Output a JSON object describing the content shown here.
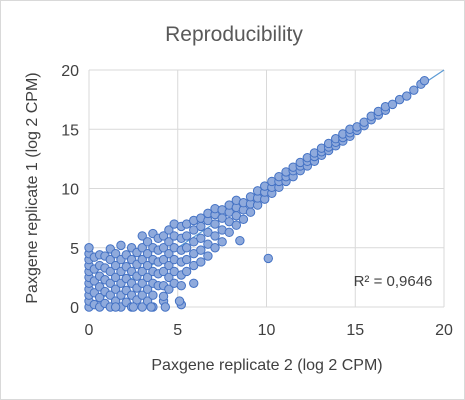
{
  "chart_data": {
    "type": "scatter",
    "title": "Reproducibility",
    "xlabel": "Paxgene replicate 2 (log 2 CPM)",
    "ylabel": "Paxgene replicate 1 (log 2 CPM)",
    "xlim": [
      0,
      20
    ],
    "ylim": [
      0,
      20
    ],
    "xticks": [
      "0",
      "5",
      "10",
      "15",
      "20"
    ],
    "yticks": [
      "0",
      "5",
      "10",
      "15",
      "20"
    ],
    "grid": true,
    "trendline": {
      "type": "linear",
      "slope": 1,
      "intercept": 0
    },
    "annotation": "R² = 0,9646",
    "marker_color": "#8faadc",
    "marker_edge_color": "#4472c4",
    "trendline_color": "#5b9bd5",
    "series": [
      {
        "points": [
          [
            0,
            0
          ],
          [
            0,
            0.5
          ],
          [
            0,
            1
          ],
          [
            0,
            1.5
          ],
          [
            0,
            2
          ],
          [
            0,
            2.5
          ],
          [
            0,
            3
          ],
          [
            0,
            3.5
          ],
          [
            0,
            4
          ],
          [
            0,
            4.5
          ],
          [
            0,
            5
          ],
          [
            0.3,
            0.2
          ],
          [
            0.3,
            1.2
          ],
          [
            0.3,
            2.2
          ],
          [
            0.3,
            3.2
          ],
          [
            0.3,
            4.2
          ],
          [
            0.6,
            0
          ],
          [
            0.6,
            0.8
          ],
          [
            0.6,
            1.7
          ],
          [
            0.6,
            2.6
          ],
          [
            0.6,
            3.5
          ],
          [
            0.6,
            4.4
          ],
          [
            0.9,
            0.3
          ],
          [
            0.9,
            1.3
          ],
          [
            0.9,
            2.3
          ],
          [
            0.9,
            3.3
          ],
          [
            0.9,
            4.3
          ],
          [
            1.2,
            0
          ],
          [
            1.2,
            1
          ],
          [
            1.2,
            2
          ],
          [
            1.2,
            3
          ],
          [
            1.2,
            4
          ],
          [
            1.2,
            4.9
          ],
          [
            1.5,
            0.5
          ],
          [
            1.5,
            1.5
          ],
          [
            1.5,
            2.5
          ],
          [
            1.5,
            3.5
          ],
          [
            1.5,
            4.5
          ],
          [
            1.8,
            0
          ],
          [
            1.8,
            1
          ],
          [
            1.8,
            2
          ],
          [
            1.8,
            3
          ],
          [
            1.8,
            4
          ],
          [
            1.8,
            5.2
          ],
          [
            2.1,
            0.4
          ],
          [
            2.1,
            1.4
          ],
          [
            2.1,
            2.4
          ],
          [
            2.1,
            3.4
          ],
          [
            2.1,
            4.4
          ],
          [
            2.4,
            0
          ],
          [
            2.4,
            1
          ],
          [
            2.4,
            2
          ],
          [
            2.4,
            3
          ],
          [
            2.4,
            4
          ],
          [
            2.4,
            5
          ],
          [
            2.7,
            0.6
          ],
          [
            2.7,
            1.6
          ],
          [
            2.7,
            2.6
          ],
          [
            2.7,
            3.6
          ],
          [
            2.7,
            4.6
          ],
          [
            3,
            0
          ],
          [
            3,
            1
          ],
          [
            3,
            2
          ],
          [
            3,
            3
          ],
          [
            3,
            4
          ],
          [
            3,
            5
          ],
          [
            3,
            6
          ],
          [
            3.3,
            0.5
          ],
          [
            3.3,
            1.5
          ],
          [
            3.3,
            2.5
          ],
          [
            3.3,
            3.5
          ],
          [
            3.3,
            4.5
          ],
          [
            3.3,
            5.5
          ],
          [
            3.6,
            0
          ],
          [
            3.6,
            1
          ],
          [
            3.6,
            2
          ],
          [
            3.6,
            3
          ],
          [
            3.6,
            4
          ],
          [
            3.6,
            5
          ],
          [
            3.6,
            6.2
          ],
          [
            3.9,
            1.8
          ],
          [
            3.9,
            2.8
          ],
          [
            3.9,
            3.8
          ],
          [
            3.9,
            4.8
          ],
          [
            3.9,
            5.8
          ],
          [
            4.2,
            0.5
          ],
          [
            4.2,
            1.8
          ],
          [
            4.2,
            3
          ],
          [
            4.2,
            4
          ],
          [
            4.2,
            5
          ],
          [
            4.2,
            6
          ],
          [
            4.5,
            1.5
          ],
          [
            4.5,
            2.5
          ],
          [
            4.5,
            3.5
          ],
          [
            4.5,
            4.5
          ],
          [
            4.5,
            5.5
          ],
          [
            4.5,
            6.5
          ],
          [
            4.8,
            2
          ],
          [
            4.8,
            3
          ],
          [
            4.8,
            4
          ],
          [
            4.8,
            5
          ],
          [
            4.8,
            6
          ],
          [
            4.8,
            7
          ],
          [
            5.2,
            0.2
          ],
          [
            5.2,
            1.8
          ],
          [
            5.2,
            2.7
          ],
          [
            5.2,
            3.8
          ],
          [
            5.2,
            4.8
          ],
          [
            5.2,
            5.8
          ],
          [
            5.2,
            6.8
          ],
          [
            5.5,
            3
          ],
          [
            5.5,
            4
          ],
          [
            5.5,
            5
          ],
          [
            5.5,
            6
          ],
          [
            5.5,
            7
          ],
          [
            5.9,
            2
          ],
          [
            5.9,
            3.5
          ],
          [
            5.9,
            4.5
          ],
          [
            5.9,
            5.5
          ],
          [
            5.9,
            6.5
          ],
          [
            5.9,
            7.3
          ],
          [
            6.3,
            3.8
          ],
          [
            6.3,
            4.8
          ],
          [
            6.3,
            5.8
          ],
          [
            6.3,
            6.8
          ],
          [
            6.3,
            7.5
          ],
          [
            6.7,
            4.3
          ],
          [
            6.7,
            5.3
          ],
          [
            6.7,
            6.3
          ],
          [
            6.7,
            7.3
          ],
          [
            6.7,
            7.9
          ],
          [
            7.1,
            5
          ],
          [
            7.1,
            6
          ],
          [
            7.1,
            7
          ],
          [
            7.1,
            7.8
          ],
          [
            7.1,
            8.3
          ],
          [
            7.5,
            5.5
          ],
          [
            7.5,
            6.5
          ],
          [
            7.5,
            7.5
          ],
          [
            7.5,
            8.2
          ],
          [
            7.9,
            6.3
          ],
          [
            7.9,
            7.2
          ],
          [
            7.9,
            8
          ],
          [
            7.9,
            8.6
          ],
          [
            8.3,
            6.9
          ],
          [
            8.3,
            7.7
          ],
          [
            8.3,
            8.4
          ],
          [
            8.3,
            9
          ],
          [
            8.7,
            7.4
          ],
          [
            8.7,
            8.2
          ],
          [
            8.7,
            8.8
          ],
          [
            8.5,
            5.6
          ],
          [
            10.1,
            4.1
          ],
          [
            9.1,
            8
          ],
          [
            9.1,
            8.7
          ],
          [
            9.1,
            9.3
          ],
          [
            9.5,
            8.6
          ],
          [
            9.5,
            9.2
          ],
          [
            9.5,
            9.8
          ],
          [
            9.9,
            9.1
          ],
          [
            9.9,
            9.7
          ],
          [
            9.9,
            10.2
          ],
          [
            10.3,
            9.6
          ],
          [
            10.3,
            10.1
          ],
          [
            10.3,
            10.6
          ],
          [
            10.7,
            10.1
          ],
          [
            10.7,
            10.6
          ],
          [
            10.7,
            11
          ],
          [
            11.1,
            10.6
          ],
          [
            11.1,
            11
          ],
          [
            11.1,
            11.4
          ],
          [
            11.5,
            11
          ],
          [
            11.5,
            11.5
          ],
          [
            11.5,
            11.8
          ],
          [
            11.9,
            11.5
          ],
          [
            11.9,
            11.9
          ],
          [
            11.9,
            12.2
          ],
          [
            12.3,
            11.9
          ],
          [
            12.3,
            12.3
          ],
          [
            12.3,
            12.6
          ],
          [
            12.7,
            12.3
          ],
          [
            12.7,
            12.7
          ],
          [
            12.7,
            13
          ],
          [
            13.1,
            12.8
          ],
          [
            13.1,
            13.1
          ],
          [
            13.1,
            13.4
          ],
          [
            13.5,
            13.2
          ],
          [
            13.5,
            13.5
          ],
          [
            13.5,
            13.8
          ],
          [
            13.9,
            13.6
          ],
          [
            13.9,
            13.9
          ],
          [
            13.9,
            14.2
          ],
          [
            14.3,
            14
          ],
          [
            14.3,
            14.3
          ],
          [
            14.3,
            14.6
          ],
          [
            14.7,
            14.4
          ],
          [
            14.7,
            14.7
          ],
          [
            14.7,
            15
          ],
          [
            15.1,
            14.9
          ],
          [
            15.1,
            15.2
          ],
          [
            15.5,
            15.3
          ],
          [
            15.5,
            15.6
          ],
          [
            15.9,
            15.8
          ],
          [
            15.9,
            16.1
          ],
          [
            16.3,
            16.2
          ],
          [
            16.3,
            16.5
          ],
          [
            16.7,
            16.6
          ],
          [
            16.7,
            16.9
          ],
          [
            17.1,
            17.1
          ],
          [
            17.5,
            17.5
          ],
          [
            17.9,
            17.8
          ],
          [
            18.3,
            18.3
          ],
          [
            18.7,
            18.8
          ],
          [
            18.9,
            19.1
          ],
          [
            1.5,
            0
          ],
          [
            2.5,
            0
          ],
          [
            3.5,
            0
          ],
          [
            4.2,
            0.9
          ],
          [
            5.1,
            0.5
          ],
          [
            4.3,
            0
          ]
        ]
      }
    ]
  }
}
